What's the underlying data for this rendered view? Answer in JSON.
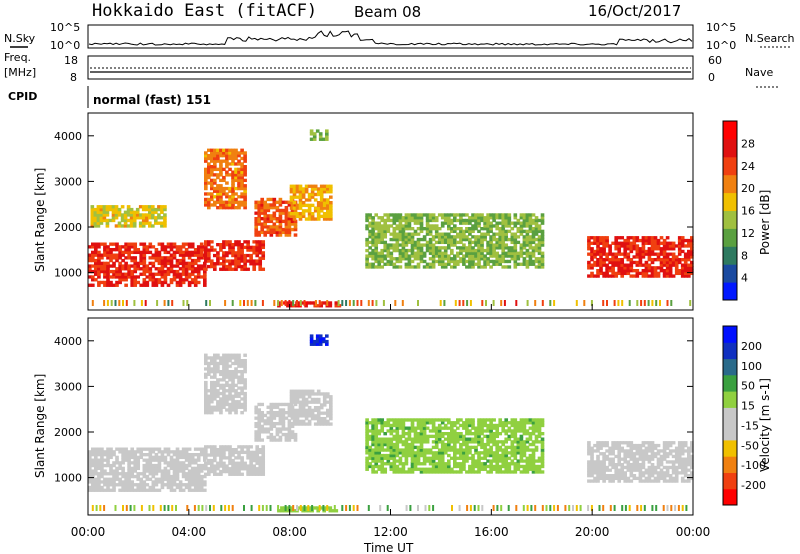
{
  "header": {
    "station": "Hokkaido East (fitACF)",
    "beam": "Beam 08",
    "date": "16/Oct/2017"
  },
  "panels": {
    "nsky_label": "N.Sky",
    "nsearch_label": "N.Search",
    "noise_ticks": [
      "10^5",
      "10^0"
    ],
    "freq_label": "Freq.",
    "freq_unit": "[MHz]",
    "freq_ticks": [
      "18",
      "8"
    ],
    "nave_label": "Nave",
    "nave_ticks": [
      "60",
      "0"
    ],
    "cpid_label": "CPID",
    "cpid_value": "normal (fast) 151"
  },
  "colors": {
    "power_scale": [
      "#0018ff",
      "#1a4aa0",
      "#2e7a60",
      "#5aa040",
      "#a0c040",
      "#f0c000",
      "#f08010",
      "#f04010",
      "#e01010",
      "#ff0000"
    ],
    "velocity_scale": [
      "#ff0000",
      "#f04010",
      "#f08010",
      "#f0c000",
      "#c8c8c8",
      "#c8c8c8",
      "#90d040",
      "#3aa040",
      "#2a6a8a",
      "#1030c0",
      "#0010ff"
    ]
  },
  "chart_data": [
    {
      "type": "heatmap",
      "title": "",
      "quantity": "Power",
      "colorbar_label": "Power [dB]",
      "colorbar_ticks": [
        4,
        8,
        12,
        16,
        20,
        24,
        28
      ],
      "ylabel": "Slant Range [km]",
      "ylim": [
        180,
        4500
      ],
      "yticks": [
        1000,
        2000,
        3000,
        4000
      ],
      "xlim": [
        0,
        24
      ],
      "xticks": [
        "00:00",
        "04:00",
        "08:00",
        "12:00",
        "16:00",
        "20:00",
        "00:00"
      ],
      "regions": [
        {
          "t0": 0.0,
          "t1": 4.6,
          "r0": 700,
          "r1": 1650,
          "value": 27
        },
        {
          "t0": 4.6,
          "t1": 7.0,
          "r0": 1050,
          "r1": 1700,
          "value": 27
        },
        {
          "t0": 6.6,
          "t1": 8.2,
          "r0": 1800,
          "r1": 2600,
          "value": 24
        },
        {
          "t0": 8.0,
          "t1": 9.6,
          "r0": 2150,
          "r1": 2900,
          "value": 19
        },
        {
          "t0": 4.6,
          "t1": 6.2,
          "r0": 2400,
          "r1": 3700,
          "value": 22
        },
        {
          "t0": 0.1,
          "t1": 3.0,
          "r0": 2000,
          "r1": 2450,
          "value": 17
        },
        {
          "t0": 11.0,
          "t1": 18.0,
          "r0": 1100,
          "r1": 2300,
          "value": 13
        },
        {
          "t0": 19.8,
          "t1": 24.0,
          "r0": 900,
          "r1": 1800,
          "value": 27
        },
        {
          "t0": 7.5,
          "t1": 10.0,
          "r0": 250,
          "r1": 350,
          "value": 28
        },
        {
          "t0": 8.8,
          "t1": 9.5,
          "r0": 3900,
          "r1": 4100,
          "value": 12
        }
      ]
    },
    {
      "type": "heatmap",
      "title": "",
      "quantity": "Velocity",
      "colorbar_label": "Velocity [m s-1]",
      "colorbar_ticks": [
        -200,
        -100,
        -50,
        -15,
        15,
        50,
        100,
        200
      ],
      "ylabel": "Slant Range [km]",
      "ylim": [
        180,
        4500
      ],
      "yticks": [
        1000,
        2000,
        3000,
        4000
      ],
      "xlim": [
        0,
        24
      ],
      "xticks": [
        "00:00",
        "04:00",
        "08:00",
        "12:00",
        "16:00",
        "20:00",
        "00:00"
      ],
      "xlabel": "Time UT",
      "regions": [
        {
          "t0": 0.0,
          "t1": 4.6,
          "r0": 700,
          "r1": 1650,
          "value": 0
        },
        {
          "t0": 4.6,
          "t1": 7.0,
          "r0": 1050,
          "r1": 1700,
          "value": 0
        },
        {
          "t0": 6.6,
          "t1": 8.2,
          "r0": 1800,
          "r1": 2600,
          "value": 0
        },
        {
          "t0": 8.0,
          "t1": 9.6,
          "r0": 2150,
          "r1": 2900,
          "value": 0
        },
        {
          "t0": 4.6,
          "t1": 6.2,
          "r0": 2400,
          "r1": 3700,
          "value": 0
        },
        {
          "t0": 11.0,
          "t1": 18.0,
          "r0": 1100,
          "r1": 2300,
          "value": 40
        },
        {
          "t0": 19.8,
          "t1": 24.0,
          "r0": 900,
          "r1": 1800,
          "value": 0
        },
        {
          "t0": 7.5,
          "t1": 10.0,
          "r0": 250,
          "r1": 350,
          "value": 35
        },
        {
          "t0": 8.8,
          "t1": 9.5,
          "r0": 3900,
          "r1": 4100,
          "value": 200
        }
      ]
    }
  ]
}
